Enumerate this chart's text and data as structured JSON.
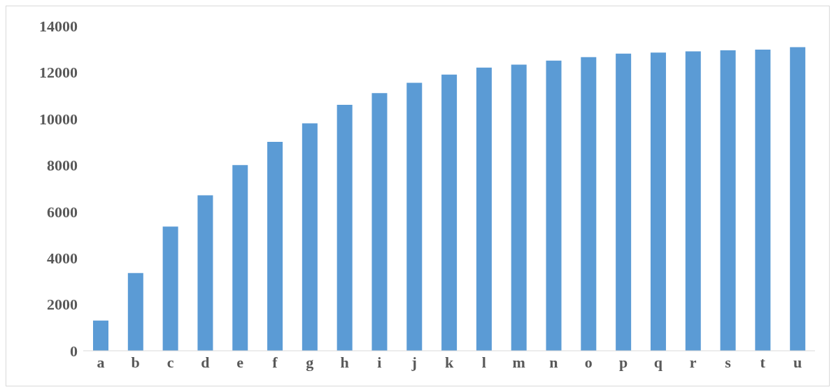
{
  "chart_data": {
    "type": "bar",
    "categories": [
      "a",
      "b",
      "c",
      "d",
      "e",
      "f",
      "g",
      "h",
      "i",
      "j",
      "k",
      "l",
      "m",
      "n",
      "o",
      "p",
      "q",
      "r",
      "s",
      "t",
      "u"
    ],
    "values": [
      1300,
      3350,
      5350,
      6700,
      8000,
      9000,
      9800,
      10600,
      11100,
      11550,
      11900,
      12200,
      12330,
      12500,
      12650,
      12800,
      12850,
      12900,
      12950,
      12980,
      13080
    ],
    "color": "#5b9bd5",
    "ylim": [
      0,
      14000
    ],
    "yticks": [
      0,
      2000,
      4000,
      6000,
      8000,
      10000,
      12000,
      14000
    ],
    "grid": false,
    "legend": false
  }
}
